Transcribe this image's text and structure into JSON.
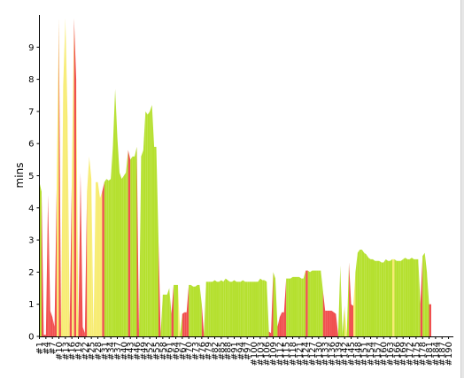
{
  "chart_data": {
    "type": "area",
    "title": "",
    "xlabel": "",
    "ylabel": "mins",
    "ylim": [
      0,
      10
    ],
    "y_ticks": [
      0,
      1,
      2,
      3,
      4,
      5,
      6,
      7,
      8,
      9
    ],
    "x_range": [
      1,
      191
    ],
    "x_tick_labels": [
      "#1",
      "#4",
      "#7",
      "#10",
      "#13",
      "#16",
      "#19",
      "#22",
      "#25",
      "#28",
      "#31",
      "#34",
      "#37",
      "#40",
      "#43",
      "#46",
      "#49",
      "#52",
      "#55",
      "#58",
      "#61",
      "#64",
      "#67",
      "#70",
      "#73",
      "#76",
      "#79",
      "#82",
      "#85",
      "#88",
      "#91",
      "#94",
      "#97",
      "#100",
      "#103",
      "#106",
      "#109",
      "#112",
      "#115",
      "#118",
      "#121",
      "#124",
      "#127",
      "#130",
      "#133",
      "#136",
      "#139",
      "#142",
      "#145",
      "#148",
      "#151",
      "#154",
      "#157",
      "#160",
      "#163",
      "#166",
      "#169",
      "#172",
      "#175",
      "#178",
      "#181",
      "#184",
      "#187",
      "#190"
    ],
    "grid": false,
    "legend": "none",
    "series_colors": {
      "pass": "#b5e02f",
      "warn": "#f7ec74",
      "fail": "#f05050"
    },
    "builds": [
      {
        "x": 1,
        "y": 4.8,
        "s": "pass"
      },
      {
        "x": 2,
        "y": 4.5,
        "s": "fail"
      },
      {
        "x": 3,
        "y": 0.05,
        "s": "fail"
      },
      {
        "x": 4,
        "y": 0.05,
        "s": "fail"
      },
      {
        "x": 5,
        "y": 4.4,
        "s": "fail"
      },
      {
        "x": 6,
        "y": 0.8,
        "s": "fail"
      },
      {
        "x": 7,
        "y": 0.6,
        "s": "fail"
      },
      {
        "x": 8,
        "y": 0.3,
        "s": "fail"
      },
      {
        "x": 9,
        "y": 4.7,
        "s": "warn"
      },
      {
        "x": 10,
        "y": 9.9,
        "s": "fail"
      },
      {
        "x": 11,
        "y": 0.05,
        "s": "warn"
      },
      {
        "x": 12,
        "y": 7.8,
        "s": "warn"
      },
      {
        "x": 13,
        "y": 9.9,
        "s": "warn"
      },
      {
        "x": 14,
        "y": 6.8,
        "s": "warn"
      },
      {
        "x": 15,
        "y": 0.3,
        "s": "fail"
      },
      {
        "x": 16,
        "y": 5.0,
        "s": "warn"
      },
      {
        "x": 17,
        "y": 9.9,
        "s": "fail"
      },
      {
        "x": 18,
        "y": 8.0,
        "s": "warn"
      },
      {
        "x": 19,
        "y": 0.2,
        "s": "fail"
      },
      {
        "x": 20,
        "y": 5.1,
        "s": "fail"
      },
      {
        "x": 21,
        "y": 0.3,
        "s": "fail"
      },
      {
        "x": 22,
        "y": 0.1,
        "s": "fail"
      },
      {
        "x": 23,
        "y": 4.5,
        "s": "warn"
      },
      {
        "x": 24,
        "y": 5.6,
        "s": "warn"
      },
      {
        "x": 25,
        "y": 4.9,
        "s": "warn"
      },
      {
        "x": 26,
        "y": 0.05,
        "s": "warn"
      },
      {
        "x": 27,
        "y": 4.8,
        "s": "warn"
      },
      {
        "x": 28,
        "y": 4.8,
        "s": "warn"
      },
      {
        "x": 29,
        "y": 4.3,
        "s": "warn"
      },
      {
        "x": 30,
        "y": 4.5,
        "s": "fail"
      },
      {
        "x": 31,
        "y": 4.8,
        "s": "pass"
      },
      {
        "x": 32,
        "y": 4.9,
        "s": "pass"
      },
      {
        "x": 33,
        "y": 4.85,
        "s": "pass"
      },
      {
        "x": 34,
        "y": 4.9,
        "s": "pass"
      },
      {
        "x": 35,
        "y": 6.0,
        "s": "pass"
      },
      {
        "x": 36,
        "y": 7.7,
        "s": "pass"
      },
      {
        "x": 37,
        "y": 6.2,
        "s": "pass"
      },
      {
        "x": 38,
        "y": 5.1,
        "s": "pass"
      },
      {
        "x": 39,
        "y": 4.9,
        "s": "pass"
      },
      {
        "x": 40,
        "y": 5.0,
        "s": "pass"
      },
      {
        "x": 41,
        "y": 5.1,
        "s": "pass"
      },
      {
        "x": 42,
        "y": 5.8,
        "s": "fail"
      },
      {
        "x": 43,
        "y": 5.5,
        "s": "pass"
      },
      {
        "x": 44,
        "y": 5.6,
        "s": "pass"
      },
      {
        "x": 45,
        "y": 5.6,
        "s": "pass"
      },
      {
        "x": 46,
        "y": 5.9,
        "s": "fail"
      },
      {
        "x": 47,
        "y": 0.05,
        "s": "pass"
      },
      {
        "x": 48,
        "y": 5.6,
        "s": "pass"
      },
      {
        "x": 49,
        "y": 5.8,
        "s": "pass"
      },
      {
        "x": 50,
        "y": 7.0,
        "s": "pass"
      },
      {
        "x": 51,
        "y": 6.9,
        "s": "pass"
      },
      {
        "x": 52,
        "y": 7.0,
        "s": "pass"
      },
      {
        "x": 53,
        "y": 7.2,
        "s": "pass"
      },
      {
        "x": 54,
        "y": 5.9,
        "s": "pass"
      },
      {
        "x": 55,
        "y": 5.9,
        "s": "pass"
      },
      {
        "x": 56,
        "y": 3.0,
        "s": "fail"
      },
      {
        "x": 57,
        "y": 0.05,
        "s": "pass"
      },
      {
        "x": 58,
        "y": 1.3,
        "s": "pass"
      },
      {
        "x": 59,
        "y": 1.3,
        "s": "pass"
      },
      {
        "x": 60,
        "y": 1.3,
        "s": "pass"
      },
      {
        "x": 61,
        "y": 1.5,
        "s": "pass"
      },
      {
        "x": 62,
        "y": 0.7,
        "s": "fail"
      },
      {
        "x": 63,
        "y": 1.6,
        "s": "pass"
      },
      {
        "x": 64,
        "y": 1.6,
        "s": "pass"
      },
      {
        "x": 65,
        "y": 1.6,
        "s": "warn"
      },
      {
        "x": 66,
        "y": 0.05,
        "s": "pass"
      },
      {
        "x": 67,
        "y": 0.7,
        "s": "fail"
      },
      {
        "x": 68,
        "y": 0.75,
        "s": "fail"
      },
      {
        "x": 69,
        "y": 0.75,
        "s": "fail"
      },
      {
        "x": 70,
        "y": 1.6,
        "s": "pass"
      },
      {
        "x": 71,
        "y": 1.6,
        "s": "pass"
      },
      {
        "x": 72,
        "y": 1.55,
        "s": "pass"
      },
      {
        "x": 73,
        "y": 1.55,
        "s": "pass"
      },
      {
        "x": 74,
        "y": 1.6,
        "s": "pass"
      },
      {
        "x": 75,
        "y": 1.6,
        "s": "pass"
      },
      {
        "x": 76,
        "y": 1.0,
        "s": "fail"
      },
      {
        "x": 77,
        "y": 0.05,
        "s": "pass"
      },
      {
        "x": 78,
        "y": 1.7,
        "s": "pass"
      },
      {
        "x": 79,
        "y": 1.7,
        "s": "pass"
      },
      {
        "x": 80,
        "y": 1.7,
        "s": "pass"
      },
      {
        "x": 81,
        "y": 1.7,
        "s": "pass"
      },
      {
        "x": 82,
        "y": 1.75,
        "s": "pass"
      },
      {
        "x": 83,
        "y": 1.7,
        "s": "pass"
      },
      {
        "x": 84,
        "y": 1.7,
        "s": "pass"
      },
      {
        "x": 85,
        "y": 1.75,
        "s": "pass"
      },
      {
        "x": 86,
        "y": 1.7,
        "s": "pass"
      },
      {
        "x": 87,
        "y": 1.8,
        "s": "pass"
      },
      {
        "x": 88,
        "y": 1.75,
        "s": "pass"
      },
      {
        "x": 89,
        "y": 1.7,
        "s": "pass"
      },
      {
        "x": 90,
        "y": 1.7,
        "s": "pass"
      },
      {
        "x": 91,
        "y": 1.75,
        "s": "pass"
      },
      {
        "x": 92,
        "y": 1.7,
        "s": "pass"
      },
      {
        "x": 93,
        "y": 1.7,
        "s": "pass"
      },
      {
        "x": 94,
        "y": 1.7,
        "s": "pass"
      },
      {
        "x": 95,
        "y": 1.75,
        "s": "pass"
      },
      {
        "x": 96,
        "y": 1.7,
        "s": "pass"
      },
      {
        "x": 97,
        "y": 1.7,
        "s": "pass"
      },
      {
        "x": 98,
        "y": 1.7,
        "s": "pass"
      },
      {
        "x": 99,
        "y": 1.7,
        "s": "pass"
      },
      {
        "x": 100,
        "y": 1.7,
        "s": "pass"
      },
      {
        "x": 101,
        "y": 1.7,
        "s": "pass"
      },
      {
        "x": 102,
        "y": 1.7,
        "s": "pass"
      },
      {
        "x": 103,
        "y": 1.8,
        "s": "pass"
      },
      {
        "x": 104,
        "y": 1.75,
        "s": "pass"
      },
      {
        "x": 105,
        "y": 1.75,
        "s": "pass"
      },
      {
        "x": 106,
        "y": 1.7,
        "s": "pass"
      },
      {
        "x": 107,
        "y": 0.15,
        "s": "fail"
      },
      {
        "x": 108,
        "y": 0.1,
        "s": "fail"
      },
      {
        "x": 109,
        "y": 2.0,
        "s": "pass"
      },
      {
        "x": 110,
        "y": 1.8,
        "s": "pass"
      },
      {
        "x": 111,
        "y": 0.3,
        "s": "fail"
      },
      {
        "x": 112,
        "y": 0.6,
        "s": "fail"
      },
      {
        "x": 113,
        "y": 0.75,
        "s": "fail"
      },
      {
        "x": 114,
        "y": 0.75,
        "s": "fail"
      },
      {
        "x": 115,
        "y": 1.8,
        "s": "pass"
      },
      {
        "x": 116,
        "y": 1.8,
        "s": "pass"
      },
      {
        "x": 117,
        "y": 1.8,
        "s": "pass"
      },
      {
        "x": 118,
        "y": 1.85,
        "s": "pass"
      },
      {
        "x": 119,
        "y": 1.85,
        "s": "pass"
      },
      {
        "x": 120,
        "y": 1.85,
        "s": "pass"
      },
      {
        "x": 121,
        "y": 1.85,
        "s": "pass"
      },
      {
        "x": 122,
        "y": 1.8,
        "s": "pass"
      },
      {
        "x": 123,
        "y": 1.8,
        "s": "pass"
      },
      {
        "x": 124,
        "y": 2.05,
        "s": "fail"
      },
      {
        "x": 125,
        "y": 2.05,
        "s": "pass"
      },
      {
        "x": 126,
        "y": 2.0,
        "s": "pass"
      },
      {
        "x": 127,
        "y": 2.05,
        "s": "pass"
      },
      {
        "x": 128,
        "y": 2.05,
        "s": "pass"
      },
      {
        "x": 129,
        "y": 2.05,
        "s": "pass"
      },
      {
        "x": 130,
        "y": 2.05,
        "s": "pass"
      },
      {
        "x": 131,
        "y": 2.05,
        "s": "pass"
      },
      {
        "x": 132,
        "y": 1.4,
        "s": "fail"
      },
      {
        "x": 133,
        "y": 0.8,
        "s": "fail"
      },
      {
        "x": 134,
        "y": 0.8,
        "s": "fail"
      },
      {
        "x": 135,
        "y": 0.8,
        "s": "fail"
      },
      {
        "x": 136,
        "y": 0.8,
        "s": "fail"
      },
      {
        "x": 137,
        "y": 0.75,
        "s": "fail"
      },
      {
        "x": 138,
        "y": 0.7,
        "s": "fail"
      },
      {
        "x": 139,
        "y": 0.05,
        "s": "pass"
      },
      {
        "x": 140,
        "y": 2.2,
        "s": "pass"
      },
      {
        "x": 141,
        "y": 0.05,
        "s": "pass"
      },
      {
        "x": 142,
        "y": 0.95,
        "s": "warn"
      },
      {
        "x": 143,
        "y": 0.05,
        "s": "pass"
      },
      {
        "x": 144,
        "y": 2.3,
        "s": "fail"
      },
      {
        "x": 145,
        "y": 1.0,
        "s": "fail"
      },
      {
        "x": 146,
        "y": 0.95,
        "s": "warn"
      },
      {
        "x": 147,
        "y": 2.0,
        "s": "pass"
      },
      {
        "x": 148,
        "y": 2.6,
        "s": "pass"
      },
      {
        "x": 149,
        "y": 2.7,
        "s": "pass"
      },
      {
        "x": 150,
        "y": 2.7,
        "s": "pass"
      },
      {
        "x": 151,
        "y": 2.6,
        "s": "pass"
      },
      {
        "x": 152,
        "y": 2.55,
        "s": "pass"
      },
      {
        "x": 153,
        "y": 2.45,
        "s": "pass"
      },
      {
        "x": 154,
        "y": 2.4,
        "s": "pass"
      },
      {
        "x": 155,
        "y": 2.4,
        "s": "pass"
      },
      {
        "x": 156,
        "y": 2.35,
        "s": "pass"
      },
      {
        "x": 157,
        "y": 2.35,
        "s": "pass"
      },
      {
        "x": 158,
        "y": 2.35,
        "s": "pass"
      },
      {
        "x": 159,
        "y": 2.3,
        "s": "pass"
      },
      {
        "x": 160,
        "y": 2.3,
        "s": "pass"
      },
      {
        "x": 161,
        "y": 2.4,
        "s": "pass"
      },
      {
        "x": 162,
        "y": 2.35,
        "s": "pass"
      },
      {
        "x": 163,
        "y": 2.35,
        "s": "pass"
      },
      {
        "x": 164,
        "y": 2.4,
        "s": "warn"
      },
      {
        "x": 165,
        "y": 2.4,
        "s": "pass"
      },
      {
        "x": 166,
        "y": 2.35,
        "s": "pass"
      },
      {
        "x": 167,
        "y": 2.35,
        "s": "pass"
      },
      {
        "x": 168,
        "y": 2.35,
        "s": "pass"
      },
      {
        "x": 169,
        "y": 2.4,
        "s": "pass"
      },
      {
        "x": 170,
        "y": 2.45,
        "s": "pass"
      },
      {
        "x": 171,
        "y": 2.4,
        "s": "pass"
      },
      {
        "x": 172,
        "y": 2.4,
        "s": "pass"
      },
      {
        "x": 173,
        "y": 2.45,
        "s": "pass"
      },
      {
        "x": 174,
        "y": 2.4,
        "s": "pass"
      },
      {
        "x": 175,
        "y": 2.4,
        "s": "pass"
      },
      {
        "x": 176,
        "y": 2.4,
        "s": "pass"
      },
      {
        "x": 177,
        "y": 1.0,
        "s": "fail"
      },
      {
        "x": 178,
        "y": 2.5,
        "s": "pass"
      },
      {
        "x": 179,
        "y": 2.6,
        "s": "pass"
      },
      {
        "x": 180,
        "y": 2.0,
        "s": "pass"
      },
      {
        "x": 181,
        "y": 1.0,
        "s": "fail"
      }
    ]
  }
}
